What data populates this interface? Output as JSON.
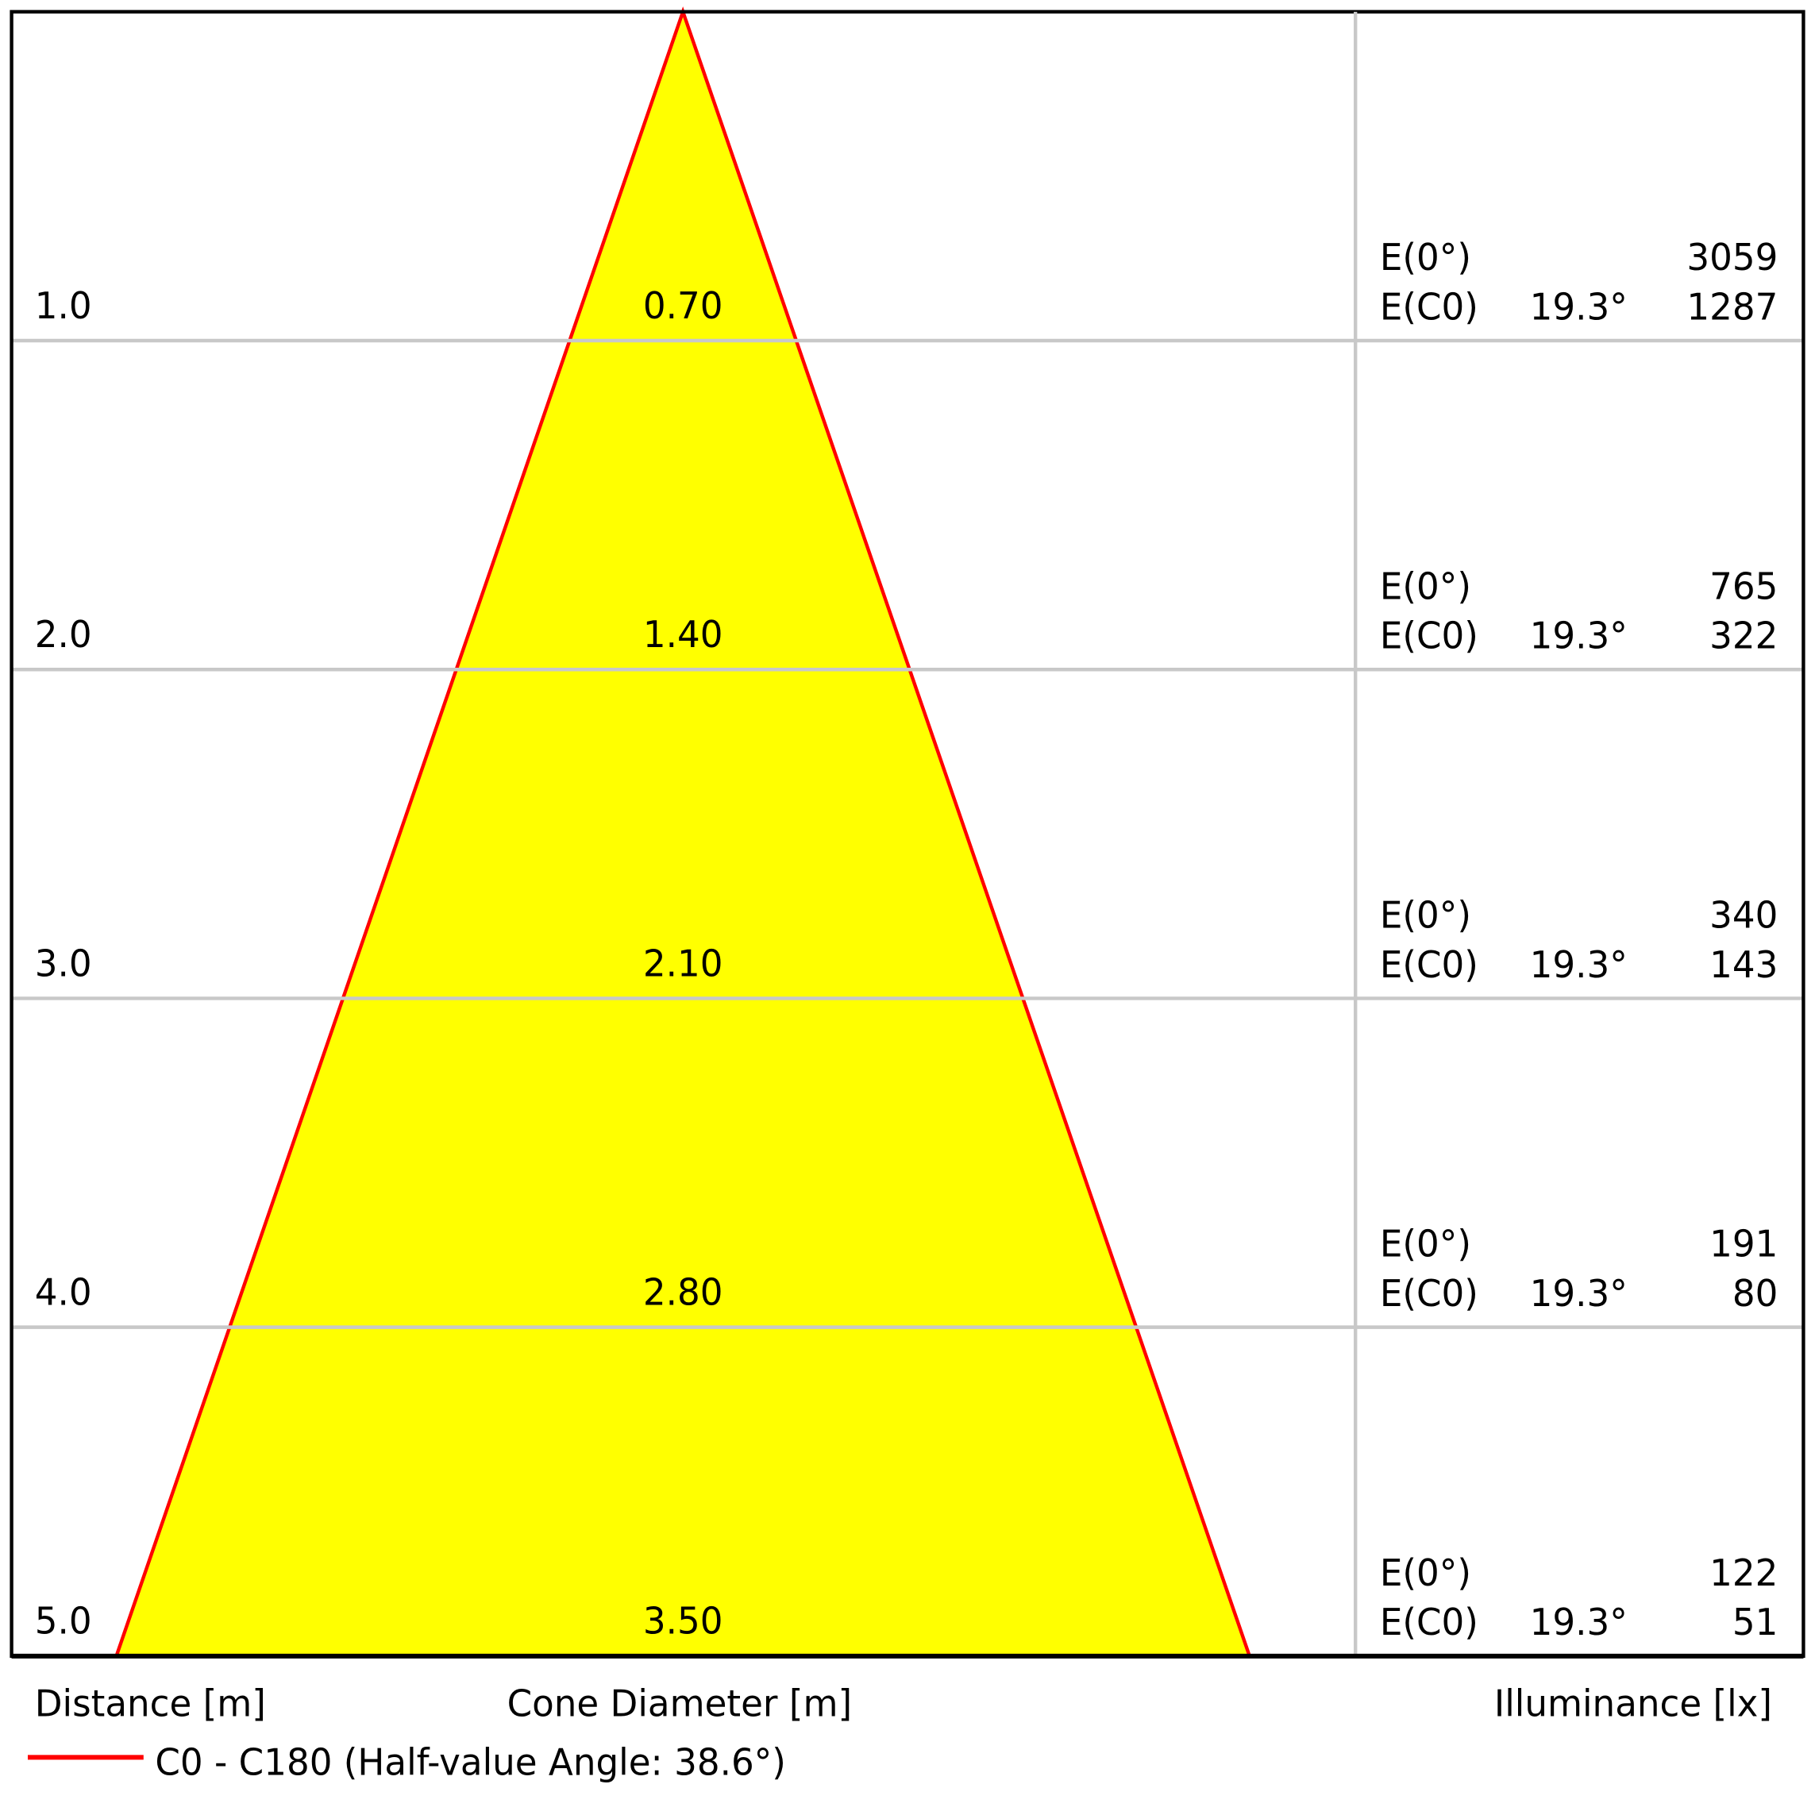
{
  "chart_data": {
    "type": "area",
    "description_type": "light cone diagram",
    "xlabel_left": "Distance [m]",
    "xlabel_center": "Cone Diameter [m]",
    "xlabel_right": "Illuminance [lx]",
    "legend": {
      "label": "C0 - C180 (Half-value Angle: 38.6°)",
      "color": "#ff0000",
      "placement": "bottom-left"
    },
    "fill_color": "#ffff00",
    "line_color": "#ff0000",
    "distances": [
      "1.0",
      "2.0",
      "3.0",
      "4.0",
      "5.0"
    ],
    "diameters": [
      "0.70",
      "1.40",
      "2.10",
      "2.80",
      "3.50"
    ],
    "rows": [
      {
        "e0_label": "E(0°)",
        "e0": "3059",
        "ec0_label": "E(C0)",
        "angle": "19.3°",
        "ec0": "1287"
      },
      {
        "e0_label": "E(0°)",
        "e0": "765",
        "ec0_label": "E(C0)",
        "angle": "19.3°",
        "ec0": "322"
      },
      {
        "e0_label": "E(0°)",
        "e0": "340",
        "ec0_label": "E(C0)",
        "angle": "19.3°",
        "ec0": "143"
      },
      {
        "e0_label": "E(0°)",
        "e0": "191",
        "ec0_label": "E(C0)",
        "angle": "19.3°",
        "ec0": "80"
      },
      {
        "e0_label": "E(0°)",
        "e0": "122",
        "ec0_label": "E(C0)",
        "angle": "19.3°",
        "ec0": "51"
      }
    ],
    "max_distance": 5.0,
    "max_diameter": 3.5
  }
}
